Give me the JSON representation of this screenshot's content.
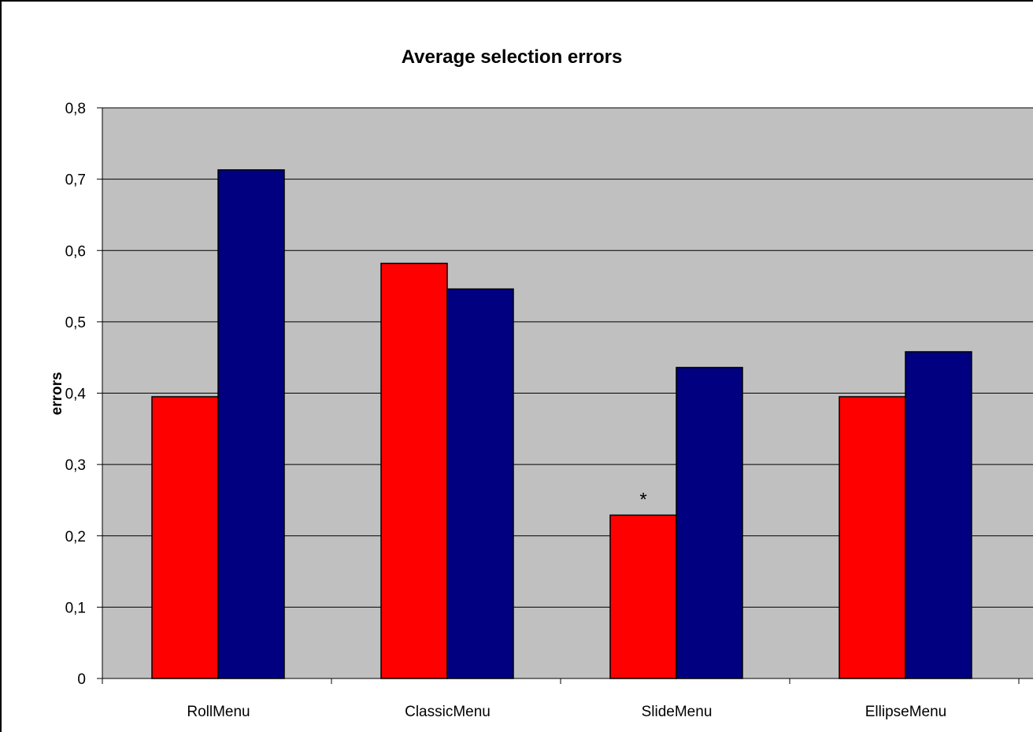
{
  "chart_data": {
    "type": "bar",
    "title": "Average selection errors",
    "xlabel": "",
    "ylabel": "errors",
    "ylim": [
      0,
      0.8
    ],
    "yticks": [
      "0",
      "0,1",
      "0,2",
      "0,3",
      "0,4",
      "0,5",
      "0,6",
      "0,7",
      "0,8"
    ],
    "ytick_values": [
      0,
      0.1,
      0.2,
      0.3,
      0.4,
      0.5,
      0.6,
      0.7,
      0.8
    ],
    "categories": [
      "RollMenu",
      "ClassicMenu",
      "SlideMenu",
      "EllipseMenu"
    ],
    "series": [
      {
        "values": [
          0.395,
          0.582,
          0.229,
          0.395
        ],
        "color": "#ff0000"
      },
      {
        "values": [
          0.713,
          0.546,
          0.436,
          0.458
        ],
        "color": "#000080"
      }
    ],
    "annotations": [
      {
        "text": "*",
        "category": "SlideMenu",
        "series_index": 0
      }
    ],
    "grid": true,
    "legend": "none",
    "plot_background": "#c0c0c0"
  }
}
